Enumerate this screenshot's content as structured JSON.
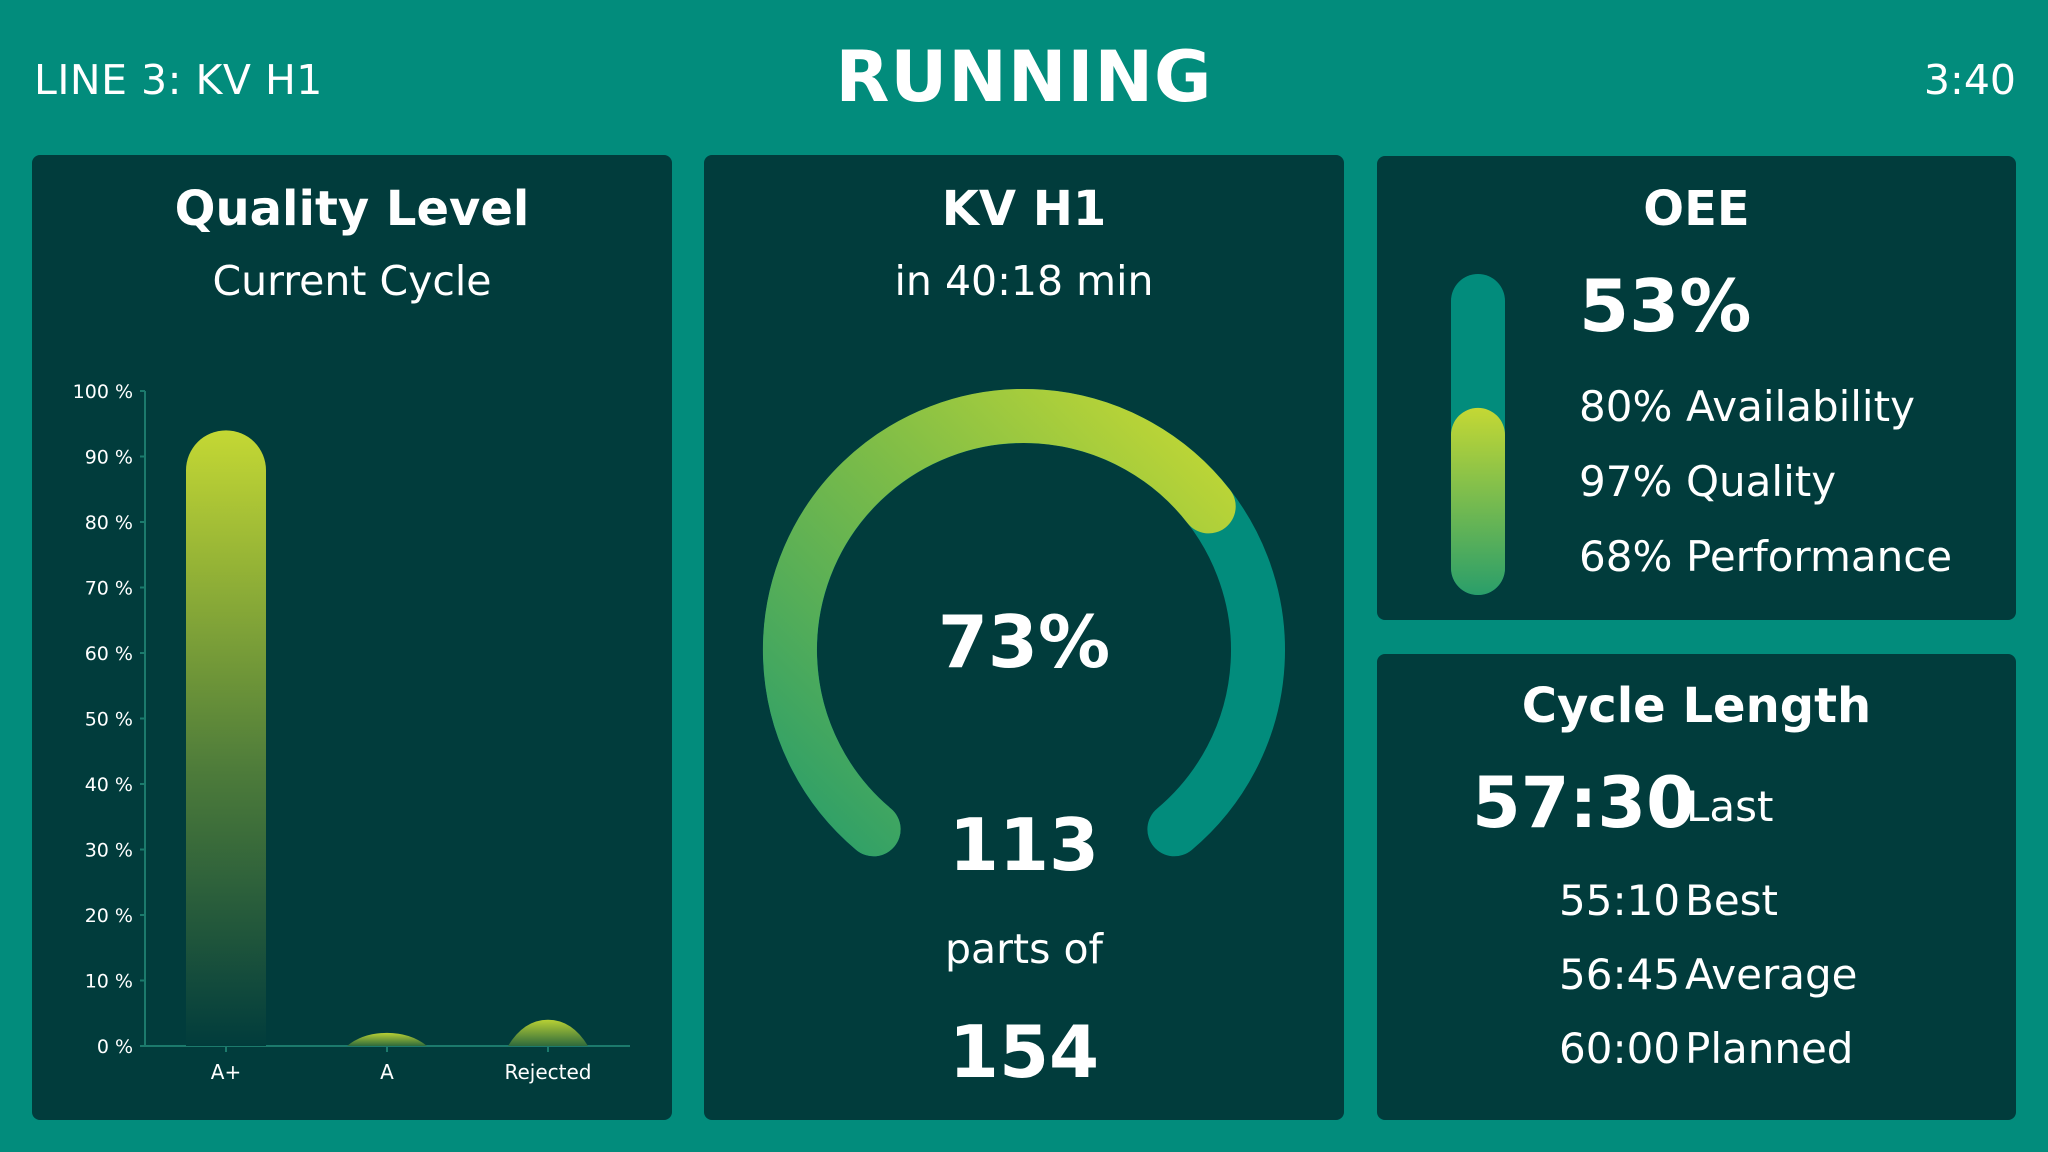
{
  "header": {
    "line_label": "LINE 3: KV H1",
    "status": "RUNNING",
    "clock": "3:40"
  },
  "quality_panel": {
    "title": "Quality Level",
    "subtitle": "Current Cycle"
  },
  "kv_panel": {
    "title": "KV H1",
    "subtitle": "in  40:18  min",
    "progress_label": "73%",
    "progress_fraction": 0.73,
    "parts_count": "113",
    "parts_of_label": "parts of",
    "parts_total": "154"
  },
  "oee_panel": {
    "title": "OEE",
    "value": "53%",
    "level_fraction": 0.53,
    "metrics": [
      {
        "value": "80%",
        "label": "Availability"
      },
      {
        "value": "97%",
        "label": "Quality"
      },
      {
        "value": "68%",
        "label": "Performance"
      }
    ]
  },
  "cycle_panel": {
    "title": "Cycle Length",
    "last_value": "57:30",
    "last_label": "Last",
    "rows": [
      {
        "value": "55:10",
        "label": "Best"
      },
      {
        "value": "56:45",
        "label": "Average"
      },
      {
        "value": "60:00",
        "label": "Planned"
      }
    ]
  },
  "colors": {
    "background": "#028c7c",
    "panel": "#013c3c",
    "accent_yellow": "#c4d834",
    "accent_green": "#2a9e6a",
    "track_teal": "#028c7c"
  },
  "chart_data": {
    "type": "bar",
    "categories": [
      "A+",
      "A",
      "Rejected"
    ],
    "values": [
      94,
      2,
      4
    ],
    "y_ticks": [
      "0 %",
      "10 %",
      "20 %",
      "30 %",
      "40 %",
      "50 %",
      "60 %",
      "70 %",
      "80 %",
      "90 %",
      "100 %"
    ],
    "ylim": [
      0,
      100
    ],
    "title": "",
    "xlabel": "",
    "ylabel": "",
    "grid": false
  }
}
